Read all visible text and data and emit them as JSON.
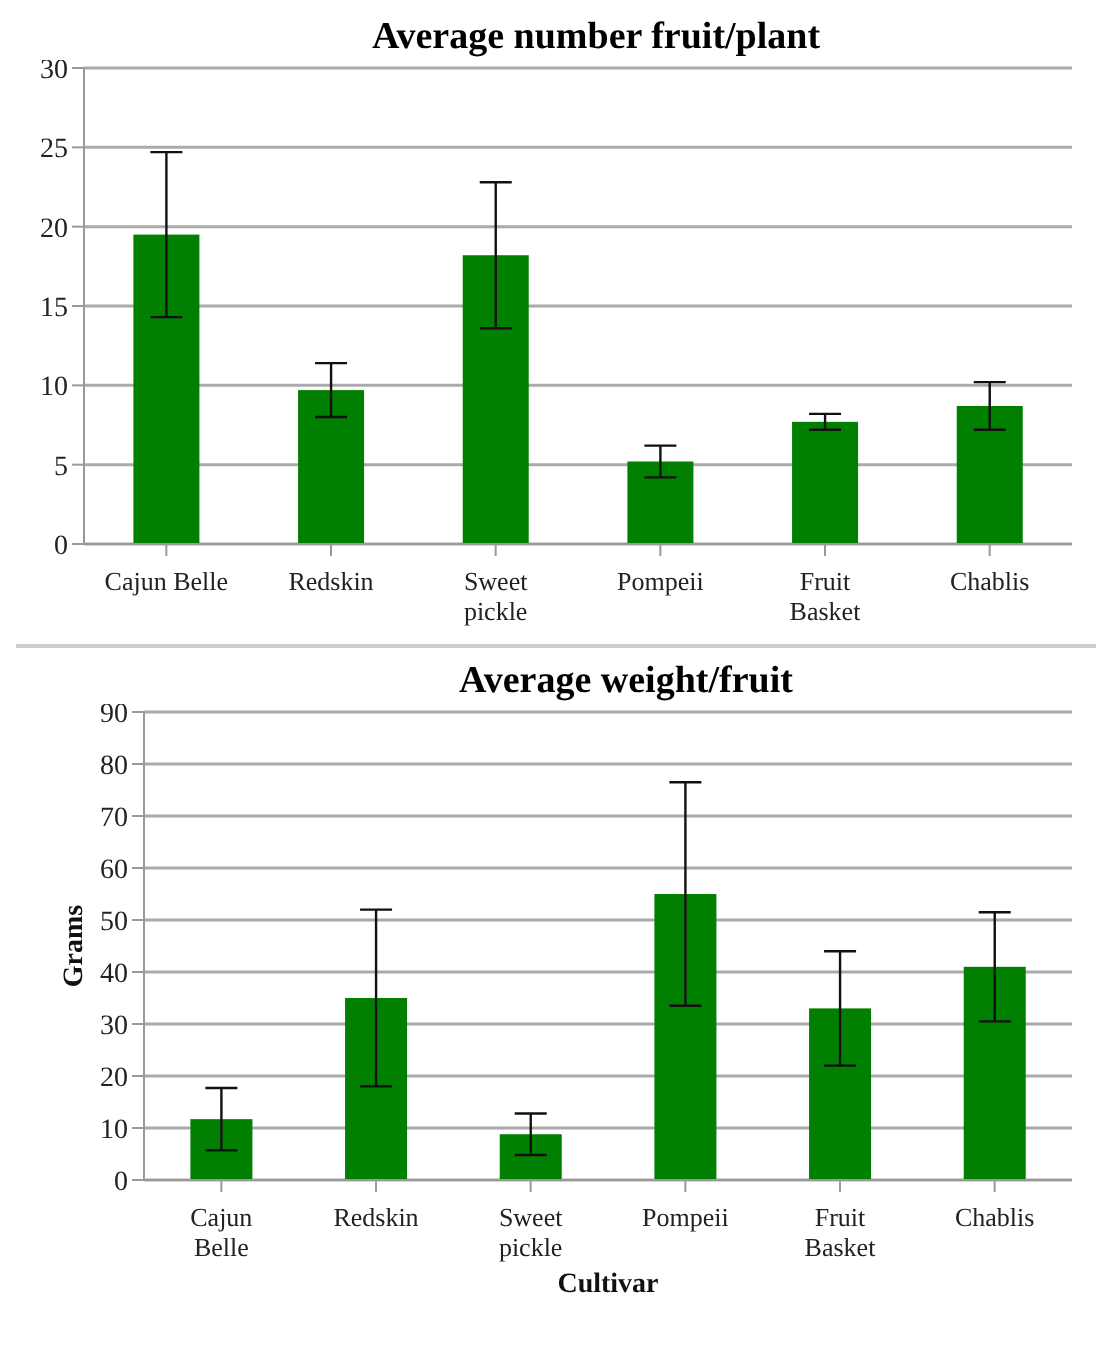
{
  "chart_data": [
    {
      "type": "bar",
      "title": "Average number fruit/plant",
      "categories": [
        "Cajun Belle",
        "Redskin",
        "Sweet pickle",
        "Pompeii",
        "Fruit Basket",
        "Chablis"
      ],
      "values": [
        19.5,
        9.7,
        18.2,
        5.2,
        7.7,
        8.7
      ],
      "errors": [
        5.2,
        1.7,
        4.6,
        1.0,
        0.5,
        1.5
      ],
      "color": "#007f00",
      "ylim": [
        0,
        30
      ],
      "yticks": [
        0,
        5,
        10,
        15,
        20,
        25,
        30
      ],
      "grid": "y"
    },
    {
      "type": "bar",
      "title": "Average weight/fruit",
      "xlabel": "Cultivar",
      "ylabel": "Grams",
      "categories": [
        "Cajun Belle",
        "Redskin",
        "Sweet pickle",
        "Pompeii",
        "Fruit Basket",
        "Chablis"
      ],
      "values": [
        11.7,
        35,
        8.8,
        55,
        33,
        41
      ],
      "errors": [
        6,
        17,
        4,
        21.5,
        11,
        10.5
      ],
      "color": "#007f00",
      "ylim": [
        0,
        90
      ],
      "yticks": [
        0,
        10,
        20,
        30,
        40,
        50,
        60,
        70,
        80,
        90
      ],
      "grid": "y"
    }
  ]
}
